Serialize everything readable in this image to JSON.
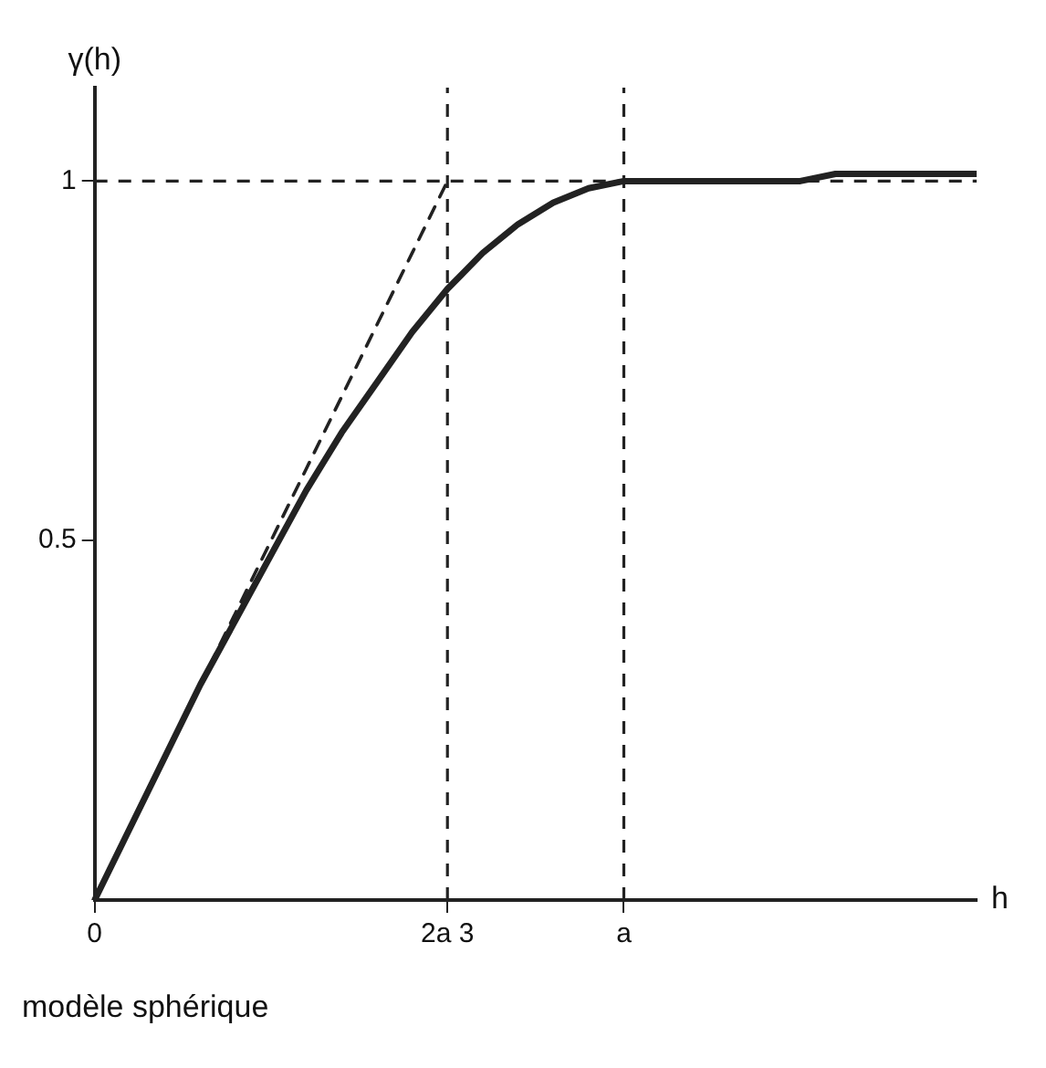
{
  "chart_data": {
    "type": "line",
    "xlabel": "h",
    "ylabel": "γ(h)",
    "annotations": [
      "modèle sphérique"
    ],
    "categories": [
      "0",
      null,
      null,
      null,
      null,
      null,
      null,
      null,
      null,
      null,
      "2a 3",
      null,
      null,
      null,
      null,
      "a",
      null,
      null,
      null,
      null,
      null,
      null,
      null,
      null,
      null,
      null
    ],
    "series": [
      {
        "color": "#222222",
        "values": [
          0,
          0.1,
          0.2,
          0.3,
          0.39,
          0.48,
          0.57,
          0.65,
          0.72,
          0.79,
          0.85,
          0.9,
          0.94,
          0.97,
          0.99,
          1,
          1,
          1,
          1,
          1,
          1,
          1.01,
          1.01,
          1.01,
          1.01,
          1.01
        ]
      },
      {
        "type": "line",
        "color": "#222222",
        "line_style": "dashed",
        "values": [
          0,
          0.1,
          0.2,
          0.3,
          0.4,
          0.5,
          0.6,
          0.7,
          0.8,
          0.9,
          1,
          null,
          null,
          null,
          null,
          null,
          null,
          null,
          null,
          null,
          null,
          null,
          null,
          null,
          null,
          null
        ]
      }
    ],
    "ylim": [
      0,
      1.13
    ],
    "yticks": [
      0.5,
      1
    ],
    "ref_lines": [
      {
        "axis": "y",
        "value": 1,
        "line_style": "dashed",
        "color": "#222222"
      },
      {
        "axis": "x",
        "value": "2a 3",
        "line_style": "dashed",
        "color": "#222222"
      },
      {
        "axis": "x",
        "value": "a",
        "line_style": "dashed",
        "color": "#222222"
      }
    ],
    "grid": false,
    "legend": false,
    "marker": "none",
    "line_style": "solid"
  }
}
